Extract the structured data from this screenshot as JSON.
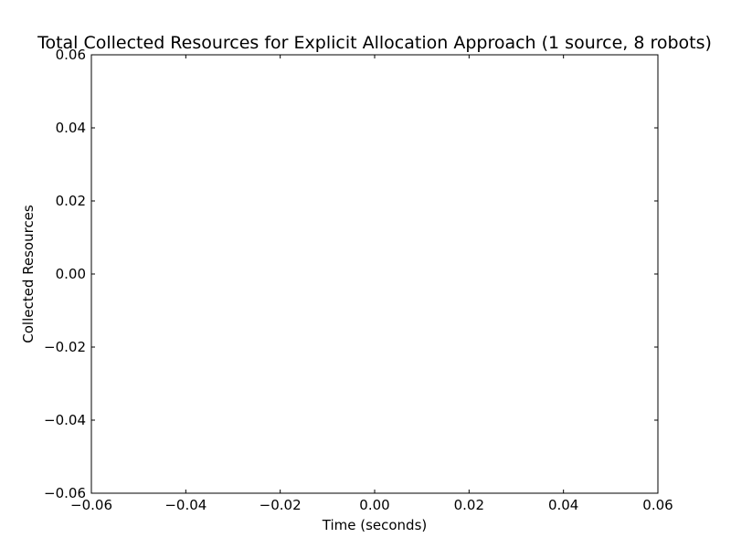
{
  "chart_data": {
    "type": "line",
    "title": "Total Collected Resources for Explicit Allocation Approach (1 source, 8 robots)",
    "xlabel": "Time (seconds)",
    "ylabel": "Collected Resources",
    "xlim": [
      -0.06,
      0.06
    ],
    "ylim": [
      -0.06,
      0.06
    ],
    "x_ticks": [
      -0.06,
      -0.04,
      -0.02,
      0.0,
      0.02,
      0.04,
      0.06
    ],
    "y_ticks": [
      -0.06,
      -0.04,
      -0.02,
      0.0,
      0.02,
      0.04,
      0.06
    ],
    "x_tick_labels": [
      "−0.06",
      "−0.04",
      "−0.02",
      "0.00",
      "0.02",
      "0.04",
      "0.06"
    ],
    "y_tick_labels": [
      "−0.06",
      "−0.04",
      "−0.02",
      "0.00",
      "0.02",
      "0.04",
      "0.06"
    ],
    "series": [],
    "grid": false,
    "legend": "none"
  }
}
